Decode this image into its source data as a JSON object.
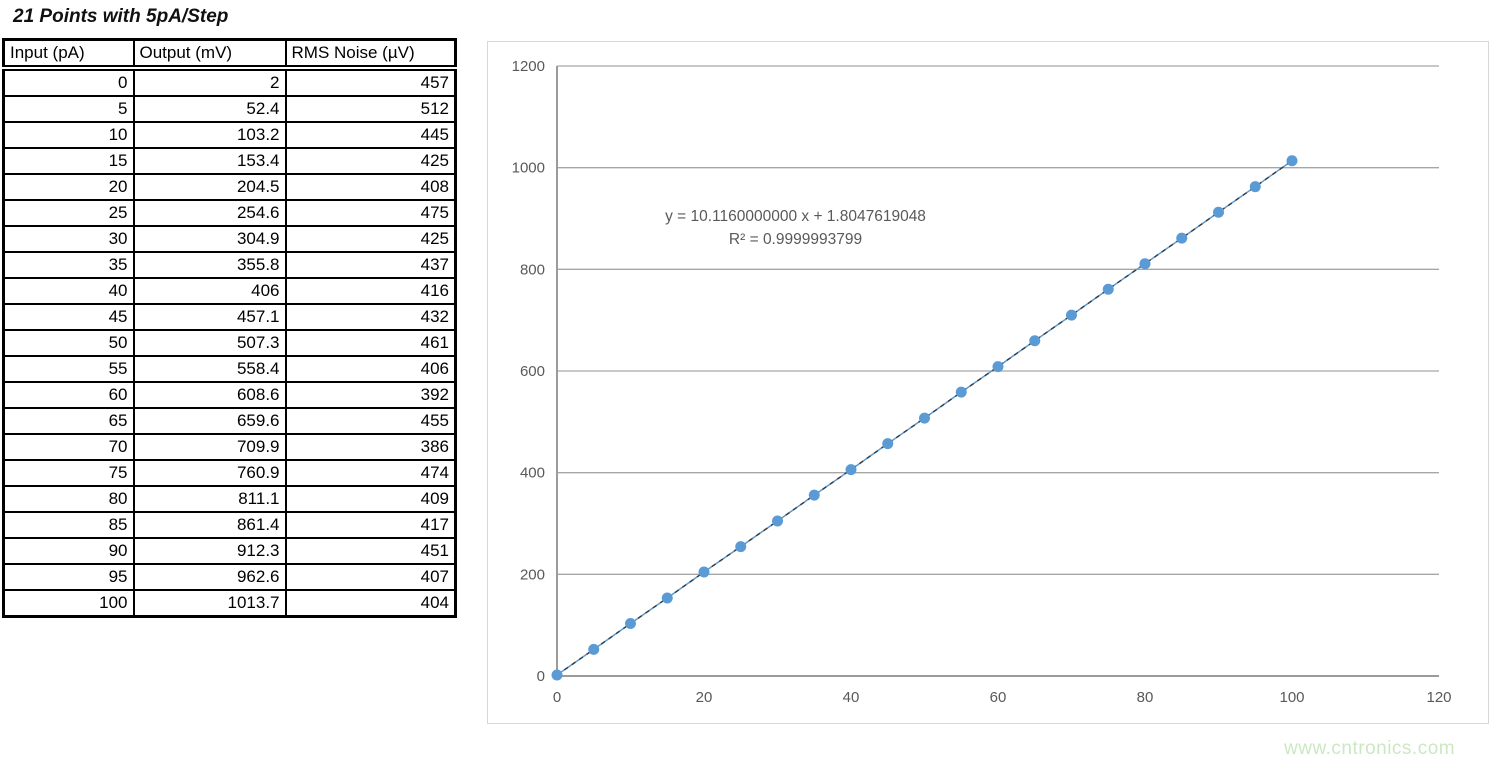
{
  "page_title": "21 Points with 5pA/Step",
  "table": {
    "headers": [
      "Input (pA)",
      "Output (mV)",
      "RMS Noise (µV)"
    ],
    "rows": [
      [
        "0",
        "2",
        "457"
      ],
      [
        "5",
        "52.4",
        "512"
      ],
      [
        "10",
        "103.2",
        "445"
      ],
      [
        "15",
        "153.4",
        "425"
      ],
      [
        "20",
        "204.5",
        "408"
      ],
      [
        "25",
        "254.6",
        "475"
      ],
      [
        "30",
        "304.9",
        "425"
      ],
      [
        "35",
        "355.8",
        "437"
      ],
      [
        "40",
        "406",
        "416"
      ],
      [
        "45",
        "457.1",
        "432"
      ],
      [
        "50",
        "507.3",
        "461"
      ],
      [
        "55",
        "558.4",
        "406"
      ],
      [
        "60",
        "608.6",
        "392"
      ],
      [
        "65",
        "659.6",
        "455"
      ],
      [
        "70",
        "709.9",
        "386"
      ],
      [
        "75",
        "760.9",
        "474"
      ],
      [
        "80",
        "811.1",
        "409"
      ],
      [
        "85",
        "861.4",
        "417"
      ],
      [
        "90",
        "912.3",
        "451"
      ],
      [
        "95",
        "962.6",
        "407"
      ],
      [
        "100",
        "1013.7",
        "404"
      ]
    ]
  },
  "chart_data": {
    "type": "scatter",
    "title": "",
    "xlabel": "",
    "ylabel": "",
    "x": [
      0,
      5,
      10,
      15,
      20,
      25,
      30,
      35,
      40,
      45,
      50,
      55,
      60,
      65,
      70,
      75,
      80,
      85,
      90,
      95,
      100
    ],
    "series": [
      {
        "name": "Output (mV)",
        "values": [
          2,
          52.4,
          103.2,
          153.4,
          204.5,
          254.6,
          304.9,
          355.8,
          406,
          457.1,
          507.3,
          558.4,
          608.6,
          659.6,
          709.9,
          760.9,
          811.1,
          861.4,
          912.3,
          962.6,
          1013.7
        ]
      }
    ],
    "trendline": {
      "equation_label": "y = 10.1160000000 x + 1.8047619048",
      "r_squared_label": "R² = 0.9999993799",
      "slope": 10.116,
      "intercept": 1.8047619048
    },
    "xlim": [
      0,
      120
    ],
    "ylim": [
      0,
      1200
    ],
    "xticks": [
      0,
      20,
      40,
      60,
      80,
      100,
      120
    ],
    "yticks": [
      0,
      200,
      400,
      600,
      800,
      1000,
      1200
    ],
    "grid": "horizontal",
    "legend": "none",
    "colors": {
      "marker": "#5b9bd5",
      "series_line": "#5b9bd5",
      "trendline": "#3b3b3b",
      "gridline": "#a6a6a6",
      "axis_line": "#9b9b9b",
      "tick_text": "#595959"
    }
  },
  "watermark": "www.cntronics.com"
}
